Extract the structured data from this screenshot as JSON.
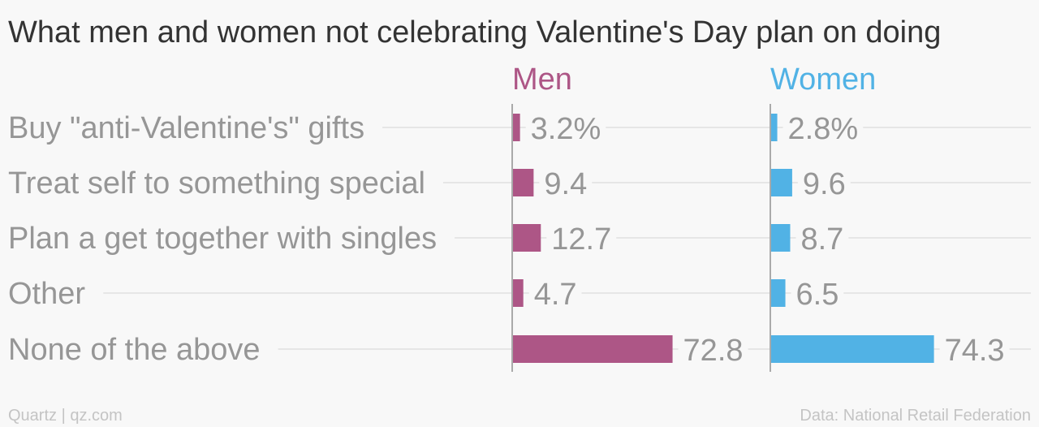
{
  "title": "What men and women not celebrating Valentine's Day plan on doing",
  "footer": {
    "source_left": "Quartz | qz.com",
    "source_right": "Data: National Retail Federation"
  },
  "colors": {
    "men": "#ad5686",
    "women": "#51b2e5",
    "label_text": "#969696",
    "title_text": "#333333",
    "footer_text": "#c4c4c4",
    "gridline": "#e6e6e6",
    "axis": "#aaaaaa"
  },
  "chart_data": {
    "type": "bar",
    "orientation": "horizontal",
    "categories": [
      "Buy \"anti-Valentine's\" gifts",
      "Treat self to something special",
      "Plan a get together with singles",
      "Other",
      "None of the above"
    ],
    "series": [
      {
        "name": "Men",
        "values": [
          3.2,
          9.4,
          12.7,
          4.7,
          72.8
        ],
        "labels": [
          "3.2%",
          "9.4",
          "12.7",
          "4.7",
          "72.8"
        ]
      },
      {
        "name": "Women",
        "values": [
          2.8,
          9.6,
          8.7,
          6.5,
          74.3
        ],
        "labels": [
          "2.8%",
          "9.6",
          "8.7",
          "6.5",
          "74.3"
        ]
      }
    ],
    "xlim": [
      0,
      100
    ],
    "grid": true,
    "legend": "column-headers"
  }
}
